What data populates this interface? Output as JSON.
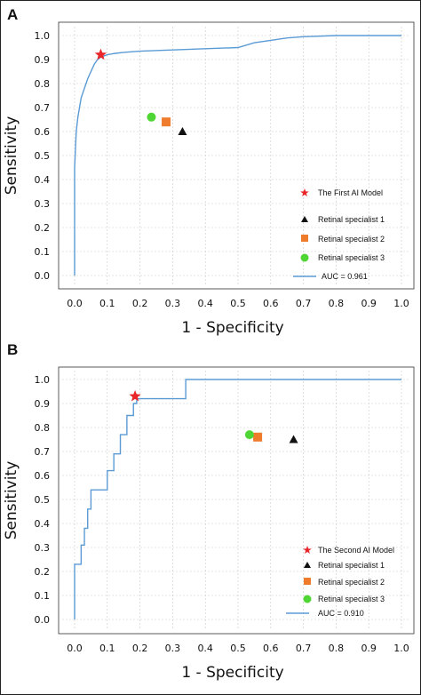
{
  "panels": [
    {
      "label": "A",
      "xlabel": "1 - Specificity",
      "ylabel": "Sensitivity",
      "ticks": [
        "0.0",
        "0.1",
        "0.2",
        "0.3",
        "0.4",
        "0.5",
        "0.6",
        "0.7",
        "0.8",
        "0.9",
        "1.0"
      ],
      "auc_label": "AUC = 0.961"
    },
    {
      "label": "B",
      "xlabel": "1 - Specificity",
      "ylabel": "Sensitivity",
      "ticks": [
        "0.0",
        "0.1",
        "0.2",
        "0.3",
        "0.4",
        "0.5",
        "0.6",
        "0.7",
        "0.8",
        "0.9",
        "1.0"
      ],
      "auc_label": "AUC = 0.910"
    }
  ],
  "colors": {
    "roc_line": "#5b9bd5",
    "ai_model": "#e8262a",
    "specialist_1": "#111111",
    "specialist_2": "#ef7b2c",
    "specialist_3": "#4fd634",
    "grid": "#c9c9c9"
  },
  "chart_data": [
    {
      "type": "line",
      "panel": "A",
      "xlabel": "1 - Specificity",
      "ylabel": "Sensitivity",
      "xlim": [
        0,
        1
      ],
      "ylim": [
        0,
        1
      ],
      "grid": true,
      "legend_position": "bottom-right",
      "series": [
        {
          "name": "AUC = 0.961",
          "kind": "roc_curve",
          "x": [
            0.0,
            0.0,
            0.005,
            0.01,
            0.015,
            0.02,
            0.03,
            0.04,
            0.05,
            0.06,
            0.07,
            0.08,
            0.1,
            0.12,
            0.15,
            0.2,
            0.3,
            0.4,
            0.5,
            0.55,
            0.6,
            0.65,
            0.7,
            0.8,
            0.9,
            1.0
          ],
          "y": [
            0.0,
            0.45,
            0.6,
            0.66,
            0.7,
            0.74,
            0.78,
            0.82,
            0.85,
            0.88,
            0.9,
            0.91,
            0.92,
            0.925,
            0.93,
            0.935,
            0.94,
            0.945,
            0.95,
            0.97,
            0.98,
            0.99,
            0.995,
            1.0,
            1.0,
            1.0
          ]
        }
      ],
      "points": [
        {
          "name": "The First AI Model",
          "marker": "star",
          "x": 0.08,
          "y": 0.92
        },
        {
          "name": "Retinal specialist 1",
          "marker": "triangle",
          "x": 0.33,
          "y": 0.6
        },
        {
          "name": "Retinal specialist 2",
          "marker": "square",
          "x": 0.28,
          "y": 0.64
        },
        {
          "name": "Retinal specialist 3",
          "marker": "circle",
          "x": 0.235,
          "y": 0.66
        }
      ]
    },
    {
      "type": "line",
      "panel": "B",
      "xlabel": "1 - Specificity",
      "ylabel": "Sensitivity",
      "xlim": [
        0,
        1
      ],
      "ylim": [
        0,
        1
      ],
      "grid": true,
      "legend_position": "bottom-right",
      "series": [
        {
          "name": "AUC = 0.910",
          "kind": "roc_curve",
          "x": [
            0.0,
            0.0,
            0.02,
            0.02,
            0.03,
            0.03,
            0.04,
            0.04,
            0.05,
            0.05,
            0.1,
            0.1,
            0.12,
            0.12,
            0.14,
            0.14,
            0.16,
            0.16,
            0.18,
            0.18,
            0.19,
            0.19,
            0.34,
            0.34,
            1.0
          ],
          "y": [
            0.0,
            0.23,
            0.23,
            0.31,
            0.31,
            0.38,
            0.38,
            0.46,
            0.46,
            0.54,
            0.54,
            0.62,
            0.62,
            0.69,
            0.69,
            0.77,
            0.77,
            0.85,
            0.85,
            0.9,
            0.9,
            0.92,
            0.92,
            1.0,
            1.0
          ]
        }
      ],
      "points": [
        {
          "name": "The Second AI Model",
          "marker": "star",
          "x": 0.185,
          "y": 0.93
        },
        {
          "name": "Retinal specialist 1",
          "marker": "triangle",
          "x": 0.67,
          "y": 0.75
        },
        {
          "name": "Retinal specialist 2",
          "marker": "square",
          "x": 0.56,
          "y": 0.76
        },
        {
          "name": "Retinal specialist 3",
          "marker": "circle",
          "x": 0.535,
          "y": 0.77
        }
      ]
    }
  ]
}
